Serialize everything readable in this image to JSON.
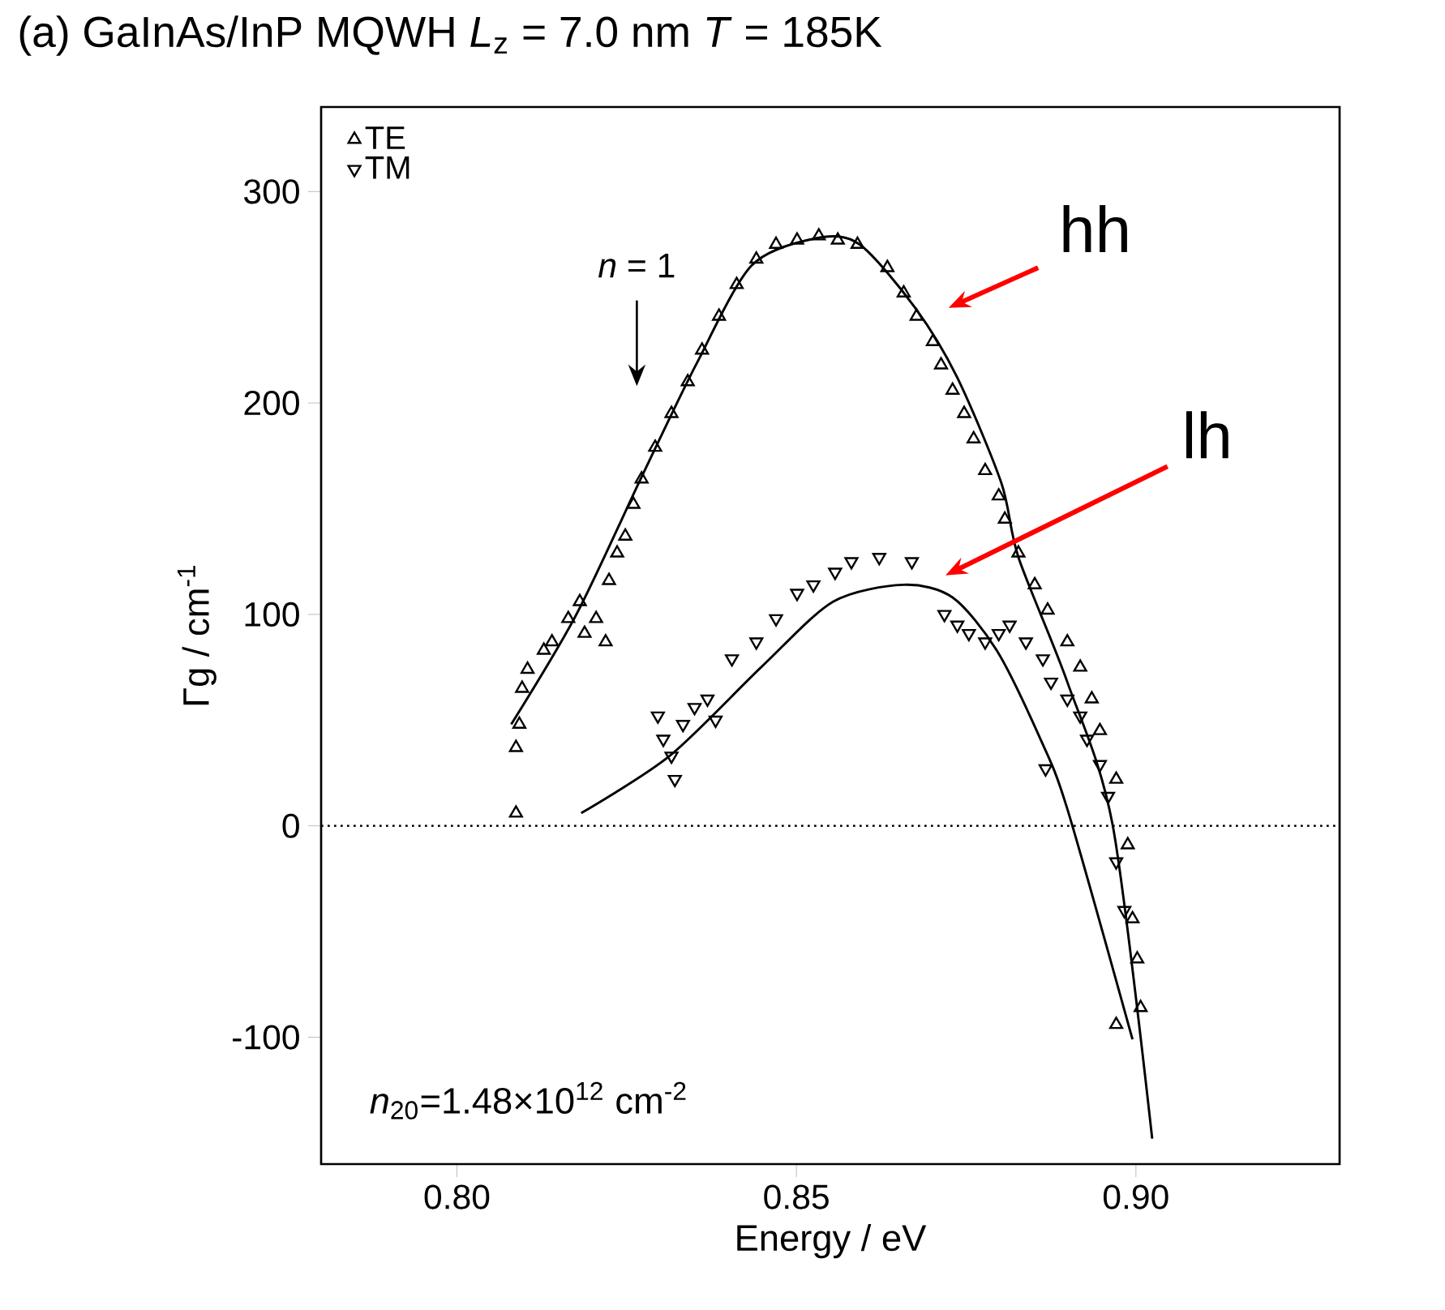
{
  "chart_data": {
    "type": "scatter",
    "title": "(a) GaInAs/InP   MQWH  *L*$_{z}$ = 7.0 nm  *T* = 185K",
    "xlabel": "Energy / eV",
    "ylabel": "Γg / cm$^{-1}$",
    "xlim": [
      0.78,
      0.93
    ],
    "xticks": [
      {
        "value": 0.8,
        "label": "0.80"
      },
      0.85,
      {
        "value": 0.9,
        "label": "0.90"
      }
    ],
    "ylim": [
      -160,
      340
    ],
    "yticks": [
      -100,
      0,
      100,
      200,
      300
    ],
    "legend": "top left",
    "grid": false,
    "ref_lines": [
      {
        "axis": "y",
        "value": 0,
        "line_style": "dotted"
      }
    ],
    "annotations": [
      "hh",
      "lh",
      "*n* = 1",
      "*n*$_{20}$=1.48×10$^{12}$ cm$^{-2}$"
    ],
    "series": [
      {
        "name": "TE",
        "marker": "triangle",
        "color": "#000000",
        "x": [
          0.8087,
          0.8087,
          0.8092,
          0.8096,
          0.8104,
          0.8128,
          0.814,
          0.8164,
          0.8181,
          0.8188,
          0.8205,
          0.8219,
          0.8224,
          0.8236,
          0.8248,
          0.826,
          0.8272,
          0.8292,
          0.8316,
          0.834,
          0.8361,
          0.8386,
          0.8412,
          0.8441,
          0.847,
          0.8501,
          0.8533,
          0.8561,
          0.859,
          0.8634,
          0.8658,
          0.8677,
          0.8701,
          0.8713,
          0.873,
          0.8747,
          0.8761,
          0.8778,
          0.8798,
          0.8807,
          0.8827,
          0.8851,
          0.887,
          0.8899,
          0.8918,
          0.8935,
          0.8947,
          0.8971,
          0.8988,
          0.8995,
          0.9002,
          0.9007,
          0.8971
        ],
        "values": [
          6,
          37,
          48,
          65,
          74,
          83,
          87,
          98,
          106,
          91,
          98,
          87,
          116,
          129,
          137,
          152,
          164,
          179,
          195,
          210,
          225,
          241,
          256,
          268,
          275,
          277,
          279,
          277,
          275,
          264,
          252,
          241,
          229,
          218,
          206,
          195,
          183,
          168,
          156,
          145,
          129,
          114,
          102,
          87,
          75,
          60,
          45,
          22,
          -9,
          -44,
          -63,
          -86,
          -94
        ]
      },
      {
        "name": "TM",
        "marker": "triangle",
        "color": "#000000",
        "x": [
          0.8296,
          0.8304,
          0.8316,
          0.8321,
          0.8333,
          0.835,
          0.8369,
          0.8381,
          0.8405,
          0.8441,
          0.847,
          0.8501,
          0.8525,
          0.8557,
          0.8581,
          0.8622,
          0.867,
          0.8718,
          0.8737,
          0.8754,
          0.8778,
          0.8798,
          0.8814,
          0.8838,
          0.8863,
          0.8867,
          0.8875,
          0.8899,
          0.8918,
          0.8928,
          0.8947,
          0.8959,
          0.8971,
          0.8983
        ],
        "values": [
          52,
          41,
          33,
          22,
          48,
          56,
          60,
          50,
          79,
          87,
          98,
          110,
          114,
          120,
          125,
          127,
          125,
          100,
          95,
          91,
          87,
          91,
          95,
          87,
          79,
          27,
          68,
          60,
          52,
          41,
          29,
          14,
          -17,
          -40
        ]
      },
      {
        "type": "line",
        "color": "#000000",
        "x": [
          0.808,
          0.8176,
          0.8272,
          0.8352,
          0.8434,
          0.853,
          0.8593,
          0.8675,
          0.8737,
          0.8802,
          0.8827,
          0.8899,
          0.8966,
          0.9024
        ],
        "values": [
          48,
          100,
          165,
          218,
          265,
          278,
          275,
          245,
          212,
          162,
          127,
          68,
          0,
          -148
        ]
      },
      {
        "type": "line",
        "color": "#000000",
        "x": [
          0.8183,
          0.8313,
          0.8448,
          0.8554,
          0.8658,
          0.873,
          0.8795,
          0.8858,
          0.8899,
          0.8995
        ],
        "values": [
          6,
          33,
          75,
          106,
          114,
          108,
          83,
          42,
          8,
          -101
        ]
      }
    ]
  }
}
